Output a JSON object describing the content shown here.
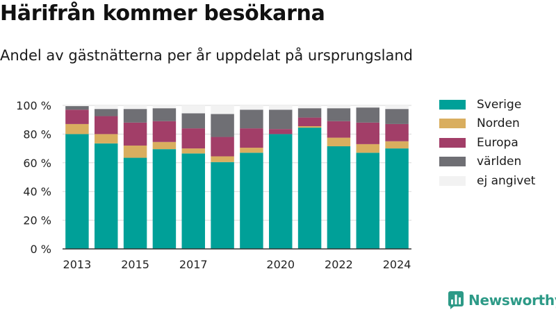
{
  "header": {
    "title": "Härifrån kommer besökarna",
    "subtitle": "Andel av gästnätterna per år uppdelat på ursprungsland"
  },
  "brand": {
    "name": "Newsworthy",
    "icon": "bar-chart-logo-icon",
    "color": "#2d9a87"
  },
  "chart_data": {
    "type": "bar",
    "stacked": true,
    "categories": [
      "2013",
      "2014",
      "2015",
      "2016",
      "2017",
      "2018",
      "2019",
      "2020",
      "2021",
      "2022",
      "2023",
      "2024"
    ],
    "x_tick_labels": [
      "2013",
      "",
      "2015",
      "",
      "2017",
      "",
      "",
      "2020",
      "",
      "2022",
      "",
      "2024"
    ],
    "y_ticks": [
      0,
      20,
      40,
      60,
      80,
      100
    ],
    "y_tick_labels": [
      "0 %",
      "20 %",
      "40 %",
      "60 %",
      "80 %",
      "100 %"
    ],
    "ylim": [
      0,
      100
    ],
    "grid": true,
    "legend": "right",
    "series": [
      {
        "name": "Sverige",
        "color": "#00a098",
        "values": [
          80,
          73.5,
          63.5,
          69.5,
          66.5,
          60.5,
          67,
          80,
          84.5,
          71.5,
          67,
          70
        ]
      },
      {
        "name": "Norden",
        "color": "#d9ae5f",
        "values": [
          7,
          6.5,
          8.5,
          5,
          3.5,
          4,
          3.5,
          0,
          1,
          6,
          6,
          5
        ]
      },
      {
        "name": "Europa",
        "color": "#a23e68",
        "values": [
          10,
          12.5,
          16,
          14.5,
          14,
          13.5,
          13.5,
          3.5,
          6,
          11.5,
          15,
          12
        ]
      },
      {
        "name": "världen",
        "color": "#6f6f74",
        "values": [
          2.5,
          5,
          9.5,
          9,
          10.5,
          16,
          13,
          13.5,
          6.5,
          9,
          10.5,
          10.5
        ]
      },
      {
        "name": "ej angivet",
        "color": "#f2f2f2",
        "values": [
          0.5,
          2.5,
          2.5,
          2,
          5.5,
          6,
          3,
          3,
          2,
          2,
          1.5,
          2.5
        ]
      }
    ]
  }
}
